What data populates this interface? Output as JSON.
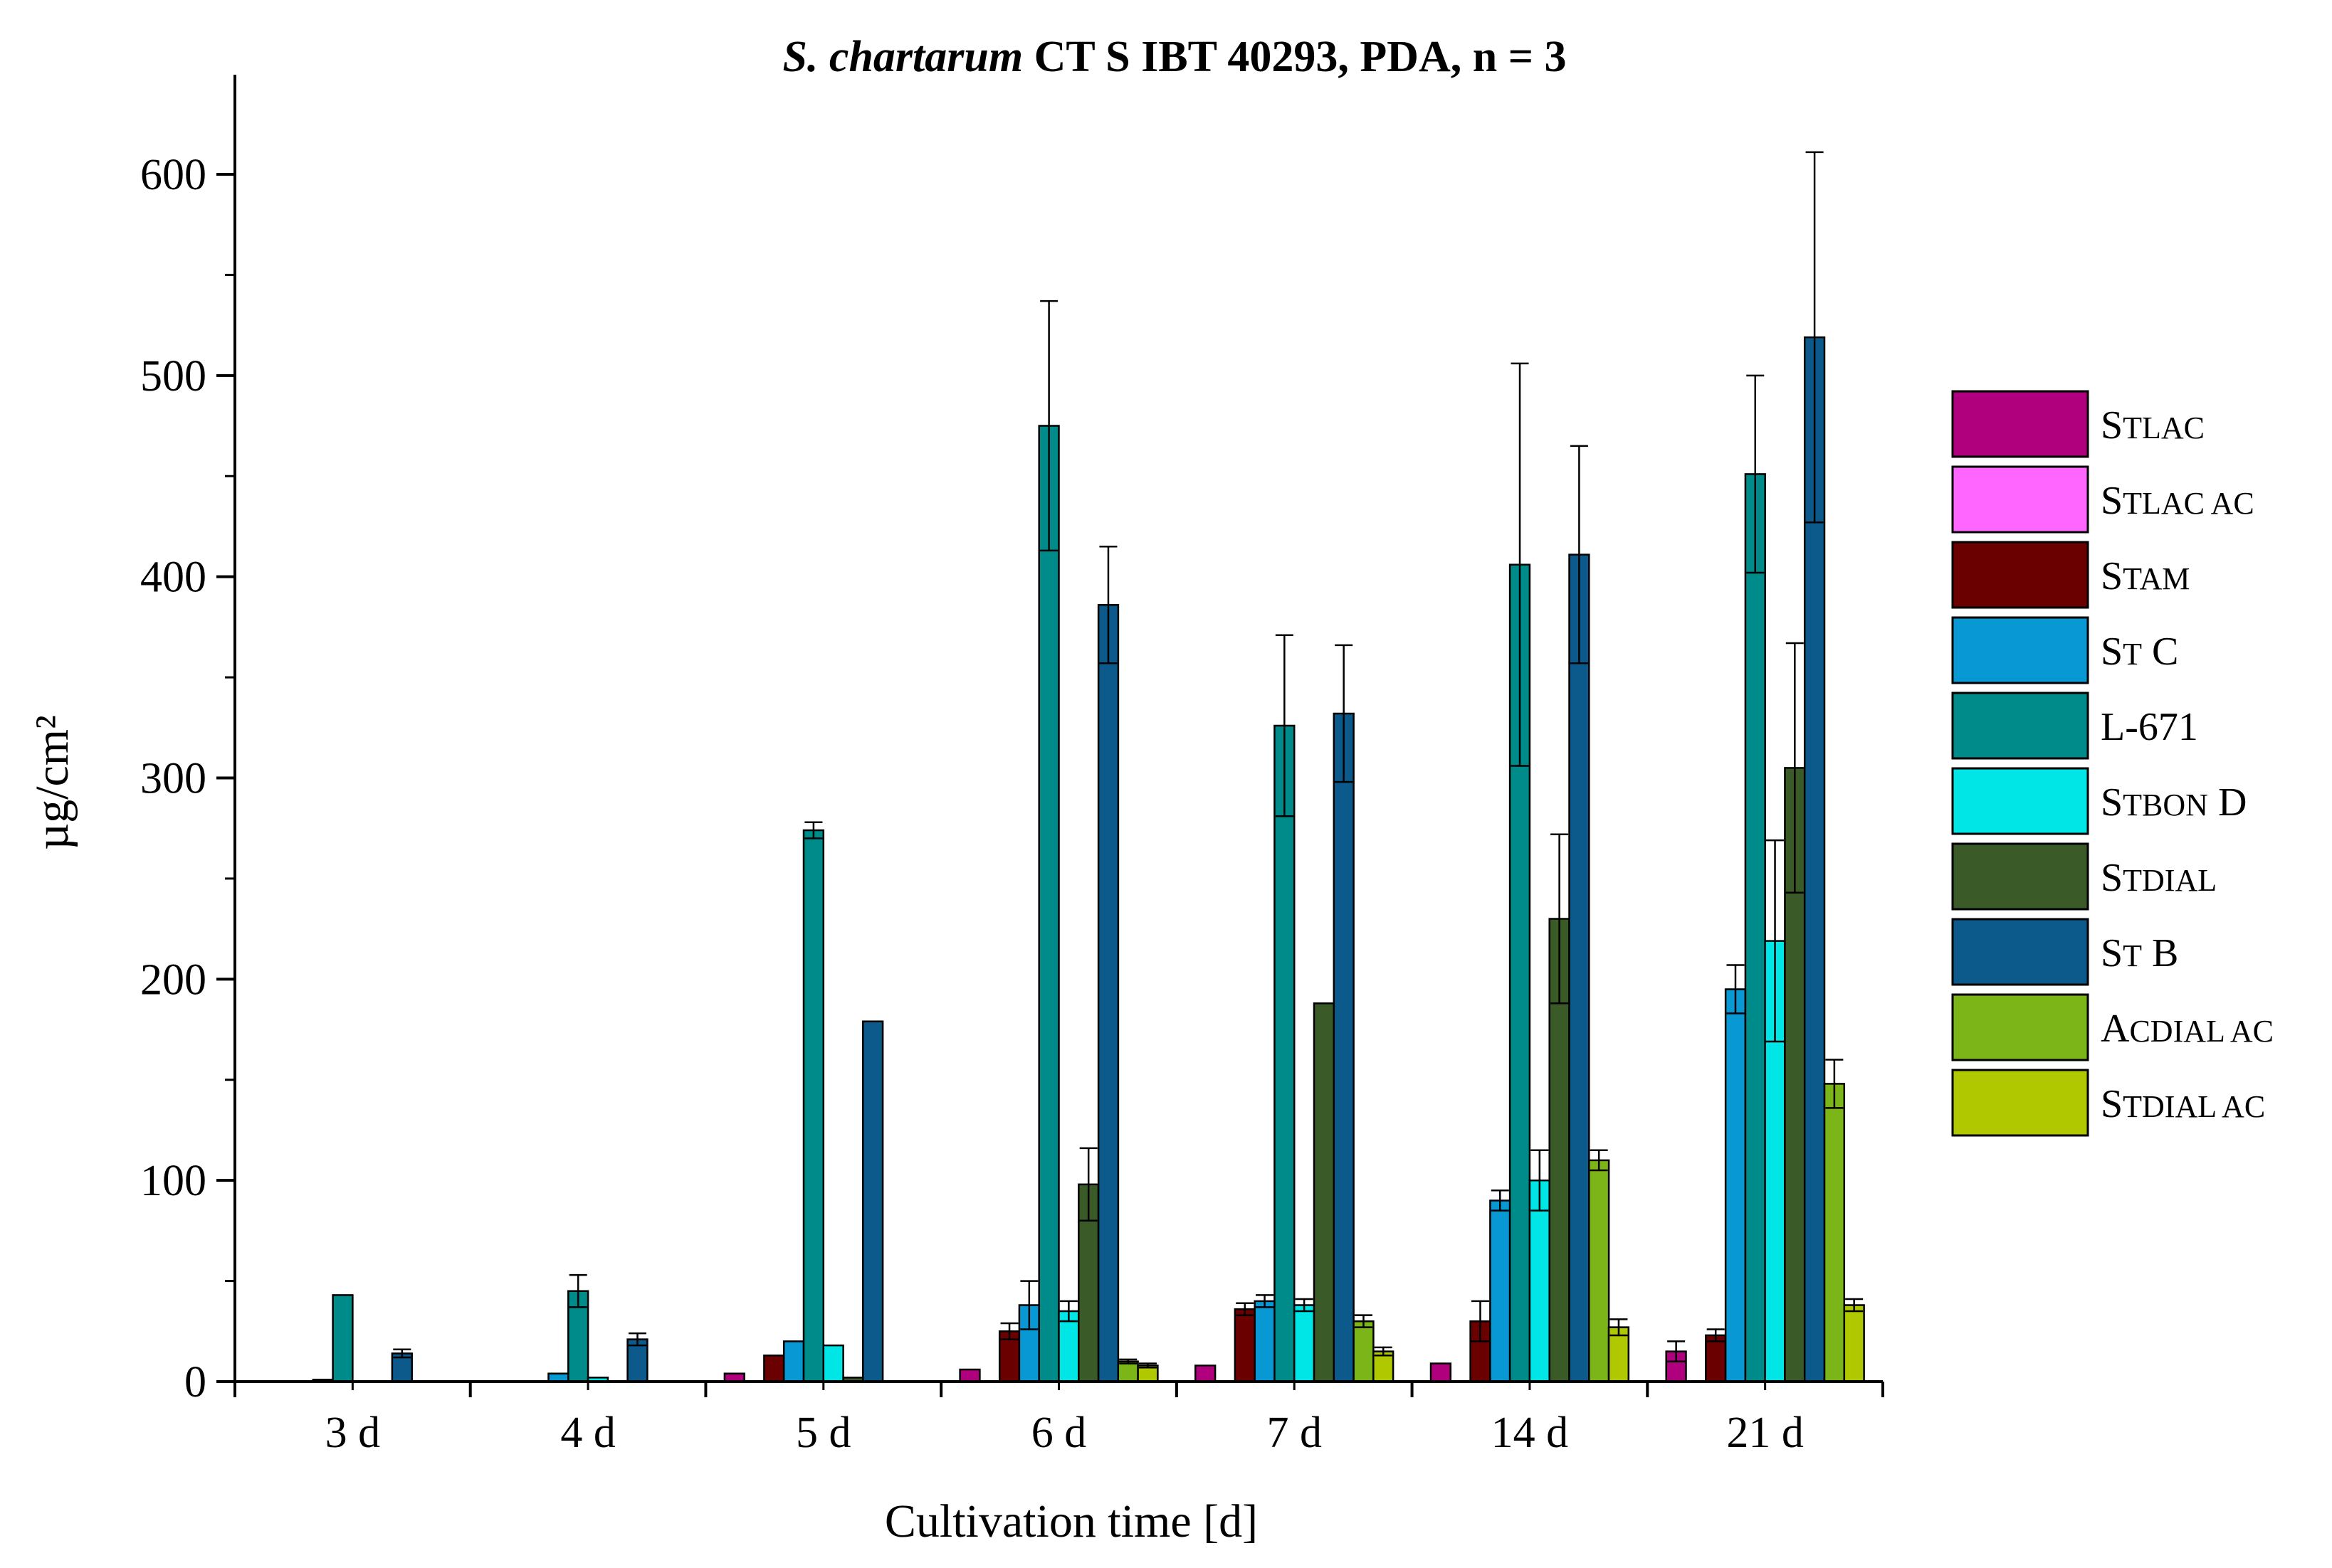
{
  "chart_data": {
    "type": "bar",
    "title_italic": "S. chartarum",
    "title_rest": " CT S IBT 40293, PDA, n = 3",
    "xlabel": "Cultivation time [d]",
    "ylabel": "µg/cm²",
    "ylim": [
      0,
      650
    ],
    "yticks": [
      0,
      100,
      200,
      300,
      400,
      500,
      600
    ],
    "categories": [
      "3 d",
      "4 d",
      "5 d",
      "6 d",
      "7 d",
      "14 d",
      "21 d"
    ],
    "legend_position": "right",
    "series": [
      {
        "name": "Stlac",
        "display": [
          {
            "t": "S",
            "sm": false
          },
          {
            "t": "TLAC",
            "sm": true
          }
        ],
        "color": "#B0007E",
        "values": [
          0,
          0,
          4,
          6,
          8,
          9,
          15
        ],
        "errors": [
          0,
          0,
          0,
          0,
          0,
          0,
          5
        ]
      },
      {
        "name": "Stlac ac",
        "display": [
          {
            "t": "S",
            "sm": false
          },
          {
            "t": "TLAC AC",
            "sm": true
          }
        ],
        "color": "#FF66FF",
        "values": [
          0,
          0,
          0,
          0,
          0,
          0,
          0
        ],
        "errors": [
          0,
          0,
          0,
          0,
          0,
          0,
          0
        ]
      },
      {
        "name": "Stam",
        "display": [
          {
            "t": "S",
            "sm": false
          },
          {
            "t": "TAM",
            "sm": true
          }
        ],
        "color": "#6B0000",
        "values": [
          0,
          0,
          13,
          25,
          36,
          30,
          23
        ],
        "errors": [
          0,
          0,
          0,
          4,
          3,
          10,
          3
        ]
      },
      {
        "name": "St C",
        "display": [
          {
            "t": "S",
            "sm": false
          },
          {
            "t": "T",
            "sm": true
          },
          {
            "t": " C",
            "sm": false
          }
        ],
        "color": "#0899D4",
        "values": [
          1,
          4,
          20,
          38,
          40,
          90,
          195
        ],
        "errors": [
          0,
          0,
          0,
          12,
          3,
          5,
          12
        ]
      },
      {
        "name": "L-671",
        "display": [
          {
            "t": "L-671",
            "sm": false
          }
        ],
        "color": "#008B8B",
        "values": [
          43,
          45,
          274,
          475,
          326,
          406,
          451
        ],
        "errors": [
          0,
          8,
          4,
          62,
          45,
          100,
          49
        ]
      },
      {
        "name": "Stbon D",
        "display": [
          {
            "t": "S",
            "sm": false
          },
          {
            "t": "TBON",
            "sm": true
          },
          {
            "t": " D",
            "sm": false
          }
        ],
        "color": "#00E5E5",
        "values": [
          0,
          2,
          18,
          35,
          38,
          100,
          219
        ],
        "errors": [
          0,
          0,
          0,
          5,
          3,
          15,
          50
        ]
      },
      {
        "name": "Stdial",
        "display": [
          {
            "t": "S",
            "sm": false
          },
          {
            "t": "TDIAL",
            "sm": true
          }
        ],
        "color": "#3A5A28",
        "values": [
          0,
          0,
          2,
          98,
          188,
          230,
          305
        ],
        "errors": [
          0,
          0,
          0,
          18,
          0,
          42,
          62
        ]
      },
      {
        "name": "St B",
        "display": [
          {
            "t": "S",
            "sm": false
          },
          {
            "t": "T",
            "sm": true
          },
          {
            "t": " B",
            "sm": false
          }
        ],
        "color": "#0B5A8B",
        "values": [
          14,
          21,
          179,
          386,
          332,
          411,
          519
        ],
        "errors": [
          2,
          3,
          0,
          29,
          34,
          54,
          92
        ]
      },
      {
        "name": "Acdial ac",
        "display": [
          {
            "t": "A",
            "sm": false
          },
          {
            "t": "CDIAL AC",
            "sm": true
          }
        ],
        "color": "#7CB518",
        "values": [
          0,
          0,
          0,
          10,
          30,
          110,
          148
        ],
        "errors": [
          0,
          0,
          0,
          1,
          3,
          5,
          12
        ]
      },
      {
        "name": "Stdial ac",
        "display": [
          {
            "t": "S",
            "sm": false
          },
          {
            "t": "TDIAL AC",
            "sm": true
          }
        ],
        "color": "#B0C800",
        "values": [
          0,
          0,
          0,
          8,
          15,
          27,
          38
        ],
        "errors": [
          0,
          0,
          0,
          1,
          2,
          4,
          3
        ]
      }
    ]
  }
}
